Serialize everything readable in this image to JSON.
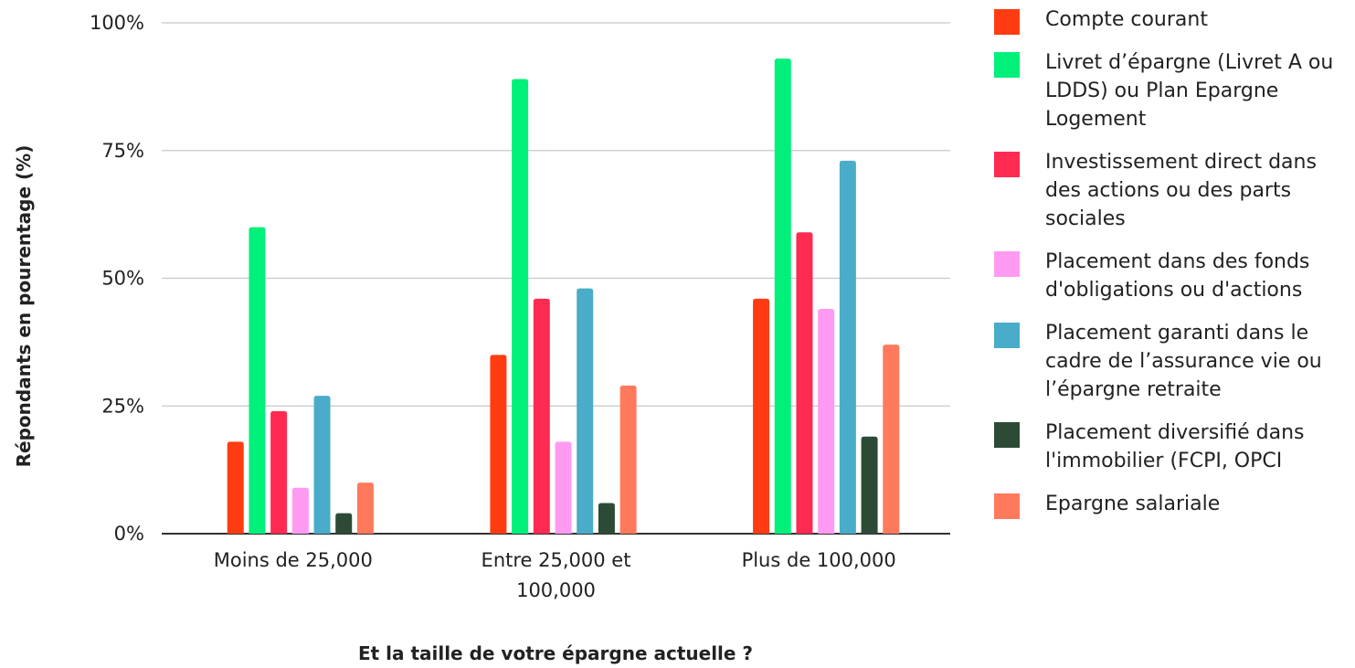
{
  "chart_data": {
    "type": "bar",
    "title": "",
    "xlabel": "Et la taille de votre épargne actuelle ?",
    "ylabel": "Répondants en pourentage (%)",
    "ylim": [
      0,
      100
    ],
    "yticks": [
      "0%",
      "25%",
      "50%",
      "75%",
      "100%"
    ],
    "grid": true,
    "legend_position": "right",
    "categories": [
      "Moins de 25,000",
      "Entre 25,000 et 100,000",
      "Plus de 100,000"
    ],
    "category_lines": [
      [
        "Moins de 25,000"
      ],
      [
        "Entre 25,000 et",
        "100,000"
      ],
      [
        "Plus de 100,000"
      ]
    ],
    "series": [
      {
        "name": "Compte courant",
        "color": "#ff3c11",
        "values": [
          18,
          35,
          46
        ]
      },
      {
        "name": "Livret d’épargne (Livret A ou LDDS) ou Plan Epargne Logement",
        "color": "#00f07a",
        "values": [
          60,
          89,
          93
        ]
      },
      {
        "name": "Investissement direct dans des actions ou des parts sociales",
        "color": "#ff2a52",
        "values": [
          24,
          46,
          59
        ]
      },
      {
        "name": "Placement dans des fonds d'obligations ou d'actions",
        "color": "#ff9af3",
        "values": [
          9,
          18,
          44
        ]
      },
      {
        "name": "Placement garanti dans le cadre de l’assurance vie ou l’épargne retraite",
        "color": "#49acc9",
        "values": [
          27,
          48,
          73
        ]
      },
      {
        "name": "Placement diversifié dans l'immobilier (FCPI, OPCI",
        "color": "#2d4a36",
        "values": [
          4,
          6,
          19
        ]
      },
      {
        "name": "Epargne salariale",
        "color": "#ff7a5c",
        "values": [
          10,
          29,
          37
        ]
      }
    ]
  }
}
